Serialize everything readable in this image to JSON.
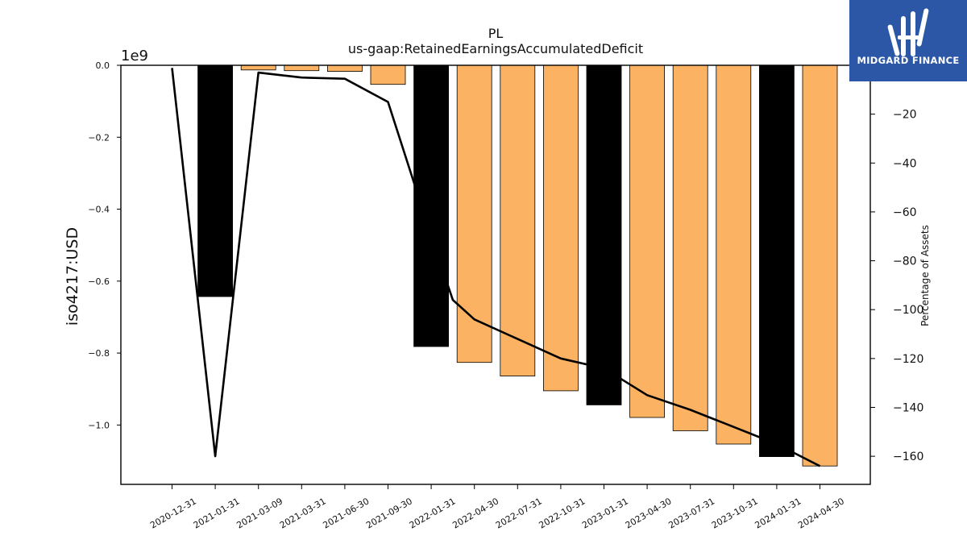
{
  "title": "PL",
  "subtitle": "us-gaap:RetainedEarningsAccumulatedDeficit",
  "logo": {
    "text": "MIDGARD FINANCE",
    "bg_color": "#2b57a6"
  },
  "chart_data": {
    "type": "bar",
    "categories": [
      "2020-12-31",
      "2021-01-31",
      "2021-03-09",
      "2021-03-31",
      "2021-06-30",
      "2021-09-30",
      "2022-01-31",
      "2022-04-30",
      "2022-07-31",
      "2022-10-31",
      "2023-01-31",
      "2023-04-30",
      "2023-07-31",
      "2023-10-31",
      "2024-01-31",
      "2024-04-30"
    ],
    "bars": {
      "values": [
        0,
        -0.643,
        -0.013,
        -0.015,
        -0.017,
        -0.053,
        -0.782,
        -0.826,
        -0.864,
        -0.905,
        -0.944,
        -0.979,
        -1.016,
        -1.053,
        -1.088,
        -1.114
      ],
      "colors": [
        "#fbb363",
        "#000000",
        "#fbb363",
        "#fbb363",
        "#fbb363",
        "#fbb363",
        "#000000",
        "#fbb363",
        "#fbb363",
        "#fbb363",
        "#000000",
        "#fbb363",
        "#fbb363",
        "#fbb363",
        "#000000",
        "#fbb363"
      ]
    },
    "line": {
      "values": [
        -1.1,
        -160,
        -3,
        -5,
        -5.5,
        -15,
        -70,
        -96,
        -104,
        -112,
        -120,
        -124,
        -135,
        -141,
        -148,
        -155,
        -164
      ],
      "x_index": [
        0,
        1,
        2,
        3,
        4,
        5,
        6,
        6.5,
        7,
        8,
        9,
        10,
        11,
        12,
        13,
        14,
        15
      ],
      "color": "#000000"
    },
    "y_left": {
      "label": "iso4217:USD",
      "offset_label": "1e9",
      "ylim": [
        -1.165,
        0
      ],
      "ticks": [
        0.0,
        -0.2,
        -0.4,
        -0.6,
        -0.8,
        -1.0
      ],
      "tick_labels": [
        "0.0",
        "−0.2",
        "−0.4",
        "−0.6",
        "−0.8",
        "−1.0"
      ]
    },
    "y_right": {
      "label": "Percentage of Assets",
      "ylim": [
        -171.5,
        0
      ],
      "ticks": [
        0,
        -20,
        -40,
        -60,
        -80,
        -100,
        -120,
        -140,
        -160
      ],
      "tick_labels": [
        "0",
        "−20",
        "−40",
        "−60",
        "−80",
        "−100",
        "−120",
        "−140",
        "−160"
      ]
    },
    "grid": false,
    "bar_edge_color": "#000000"
  }
}
